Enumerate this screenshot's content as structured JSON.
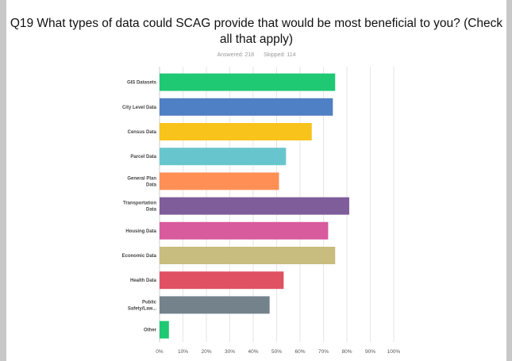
{
  "question": {
    "title": "Q19 What types of data could SCAG provide that would be most beneficial to you? (Check all that apply)",
    "answered": "Answered: 218",
    "skipped": "Skipped: 114"
  },
  "colors": {
    "gridline": "#e6e6e6",
    "axis": "#cccccc"
  },
  "chart_data": {
    "type": "bar",
    "orientation": "horizontal",
    "categories": [
      [
        "GIS Datasets"
      ],
      [
        "City Level Data"
      ],
      [
        "Census Data"
      ],
      [
        "Parcel Data"
      ],
      [
        "General Plan",
        "Data"
      ],
      [
        "Transportation",
        "Data"
      ],
      [
        "Housing Data"
      ],
      [
        "Economic Data"
      ],
      [
        "Health Data"
      ],
      [
        "Public",
        "Safety/Law..."
      ],
      [
        "Other"
      ]
    ],
    "values": [
      75,
      74,
      65,
      54,
      51,
      81,
      72,
      75,
      53,
      47,
      4
    ],
    "bar_colors": [
      "#1fc873",
      "#4f7fc4",
      "#f8c31b",
      "#67c6cd",
      "#ff8f55",
      "#7f5c9a",
      "#d75b9d",
      "#c8bc7e",
      "#e05164",
      "#74828b",
      "#1fc873"
    ],
    "xlim": [
      0,
      100
    ],
    "xticks": [
      "0%",
      "10%",
      "20%",
      "30%",
      "40%",
      "50%",
      "60%",
      "70%",
      "80%",
      "90%",
      "100%"
    ],
    "grid": true
  }
}
